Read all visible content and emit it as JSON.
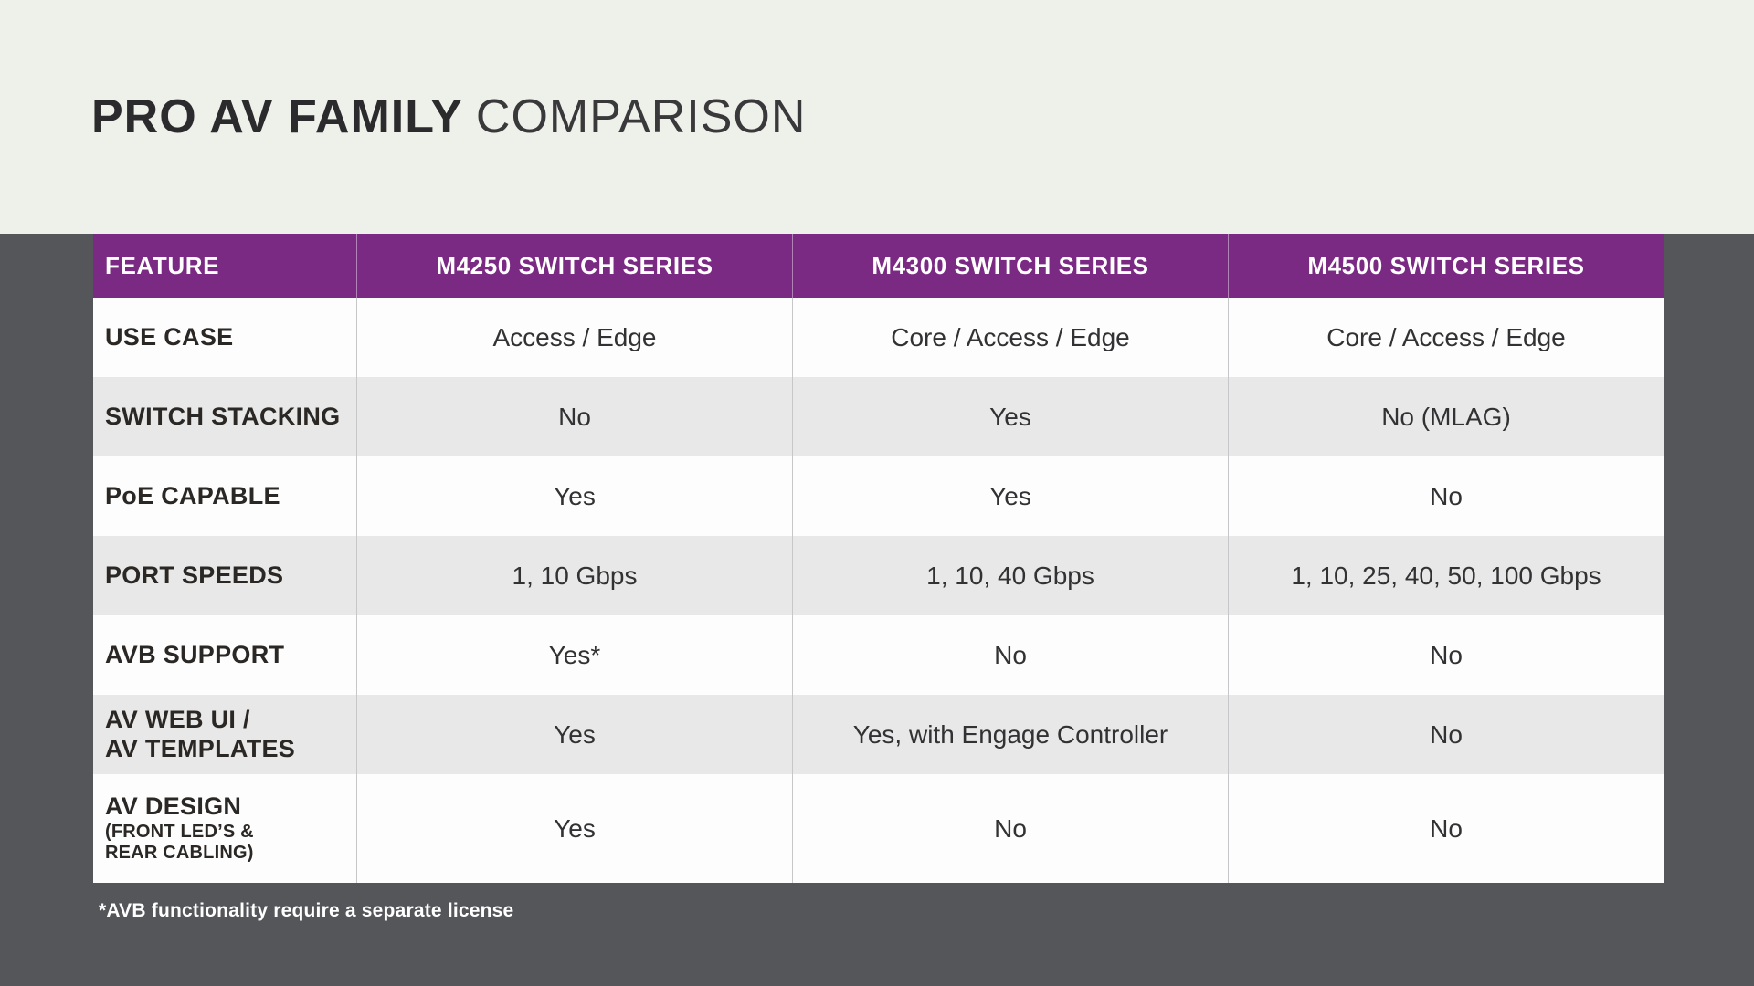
{
  "title": {
    "primary": "PRO AV FAMILY",
    "secondary": "COMPARISON"
  },
  "colors": {
    "page_background": "#54565a",
    "top_band_background": "#eef0ea",
    "header_purple": "#7b2a84",
    "row_gray": "#e8e8e8",
    "row_white": "#fdfdfd",
    "header_text": "#ffffff",
    "body_text": "#323234",
    "title_text": "#2b2a2c"
  },
  "table": {
    "headers": [
      "FEATURE",
      "M4250 SWITCH SERIES",
      "M4300 SWITCH SERIES",
      "M4500 SWITCH SERIES"
    ],
    "rows": [
      {
        "feature": "USE CASE",
        "values": [
          "Access / Edge",
          "Core / Access / Edge",
          "Core / Access / Edge"
        ]
      },
      {
        "feature": "SWITCH STACKING",
        "values": [
          "No",
          "Yes",
          "No (MLAG)"
        ]
      },
      {
        "feature": "PoE CAPABLE",
        "values": [
          "Yes",
          "Yes",
          "No"
        ]
      },
      {
        "feature": "PORT SPEEDS",
        "values": [
          "1, 10 Gbps",
          "1, 10, 40 Gbps",
          "1, 10, 25, 40, 50, 100 Gbps"
        ]
      },
      {
        "feature": "AVB SUPPORT",
        "values": [
          "Yes*",
          "No",
          "No"
        ]
      },
      {
        "feature_line1": "AV WEB UI /",
        "feature_line2": "AV TEMPLATES",
        "values": [
          "Yes",
          "Yes, with Engage Controller",
          "No"
        ]
      },
      {
        "feature": "AV DESIGN",
        "sub_line1": "(FRONT LED’S &",
        "sub_line2": "REAR CABLING)",
        "values": [
          "Yes",
          "No",
          "No"
        ]
      }
    ]
  },
  "footnote": "*AVB functionality require a separate license"
}
